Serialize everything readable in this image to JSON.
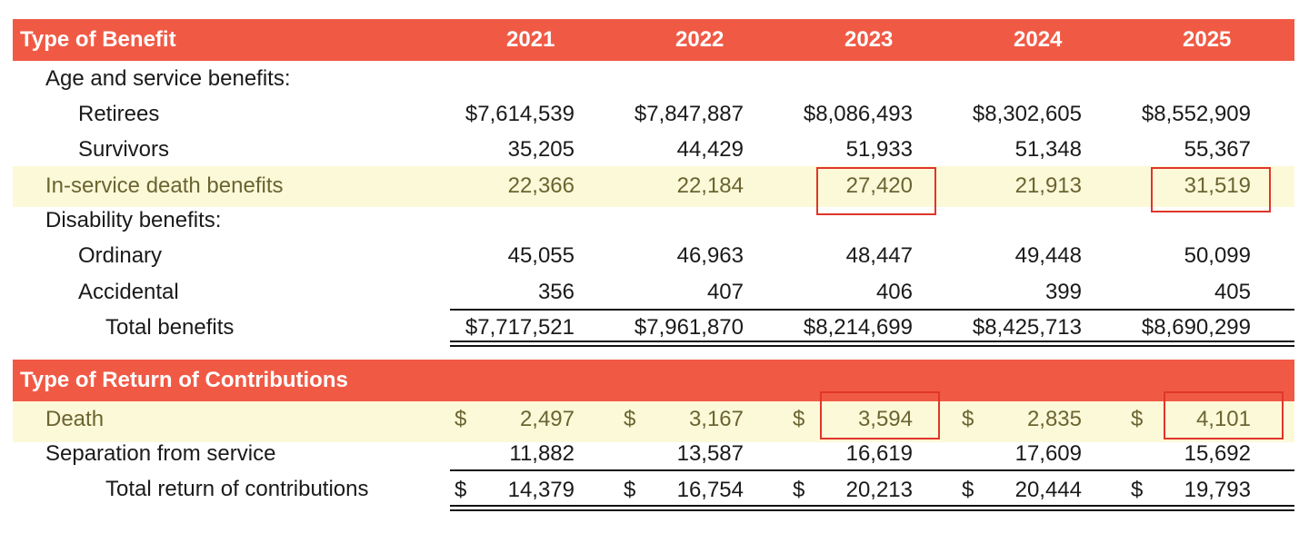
{
  "benefits_header": {
    "title": "Type of Benefit",
    "years": [
      "2021",
      "2022",
      "2023",
      "2024",
      "2025"
    ]
  },
  "benefits_rows": {
    "age_service_label": "Age and service benefits:",
    "retirees": {
      "label": "Retirees",
      "values": [
        "$7,614,539",
        "$7,847,887",
        "$8,086,493",
        "$8,302,605",
        "$8,552,909"
      ]
    },
    "survivors": {
      "label": "Survivors",
      "values": [
        "35,205",
        "44,429",
        "51,933",
        "51,348",
        "55,367"
      ]
    },
    "in_service_death": {
      "label": "In-service death benefits",
      "values": [
        "22,366",
        "22,184",
        "27,420",
        "21,913",
        "31,519"
      ]
    },
    "disability_label": "Disability benefits:",
    "ordinary": {
      "label": "Ordinary",
      "values": [
        "45,055",
        "46,963",
        "48,447",
        "49,448",
        "50,099"
      ]
    },
    "accidental": {
      "label": "Accidental",
      "values": [
        "356",
        "407",
        "406",
        "399",
        "405"
      ]
    },
    "total": {
      "label": "Total benefits",
      "values": [
        "$7,717,521",
        "$7,961,870",
        "$8,214,699",
        "$8,425,713",
        "$8,690,299"
      ]
    }
  },
  "contributions_header": {
    "title": "Type of Return of Contributions"
  },
  "contributions_rows": {
    "currency_symbol": "$",
    "death": {
      "label": "Death",
      "values": [
        "2,497",
        "3,167",
        "3,594",
        "2,835",
        "4,101"
      ]
    },
    "separation": {
      "label": "Separation from service",
      "values": [
        "11,882",
        "13,587",
        "16,619",
        "17,609",
        "15,692"
      ]
    },
    "total": {
      "label": "Total return of contributions",
      "values": [
        "14,379",
        "16,754",
        "20,213",
        "20,444",
        "19,793"
      ]
    }
  },
  "colors": {
    "header_bg": "#f05a45",
    "highlight_bg": "#fcf9d8",
    "highlight_text": "#6b6432",
    "callout_border": "#e0362a"
  }
}
